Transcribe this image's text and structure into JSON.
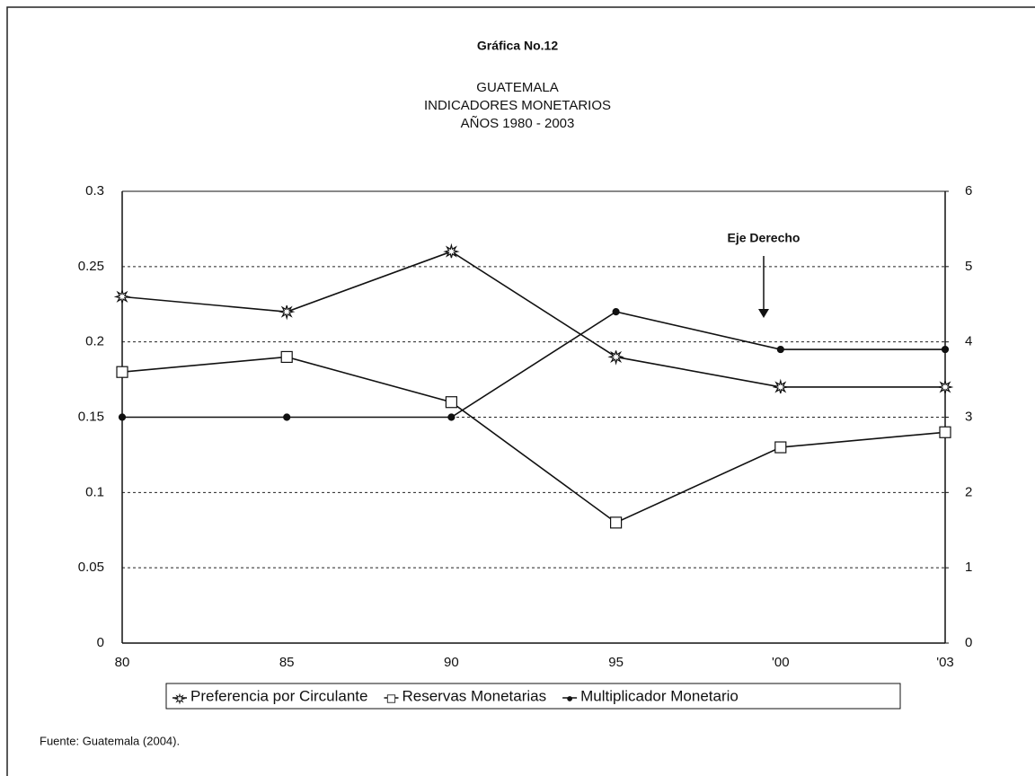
{
  "chart_data": {
    "type": "line",
    "label": "Gráfica No.12",
    "title": [
      "GUATEMALA",
      "INDICADORES MONETARIOS",
      "AÑOS 1980 - 2003"
    ],
    "categories": [
      "80",
      "85",
      "90",
      "95",
      "'00",
      "'03"
    ],
    "series": [
      {
        "name": "Preferencia por Circulante",
        "color": "#111111",
        "marker": "star",
        "values": [
          0.23,
          0.22,
          0.26,
          0.19,
          0.17,
          0.17
        ]
      },
      {
        "name": "Reservas Monetarias",
        "color": "#111111",
        "marker": "square",
        "values": [
          0.18,
          0.19,
          0.16,
          0.08,
          0.13,
          0.14
        ]
      },
      {
        "name": "Multiplicador Monetario",
        "color": "#111111",
        "marker": "dot",
        "axis": "y2",
        "values": [
          3.0,
          3.0,
          3.0,
          4.4,
          3.9,
          3.9
        ]
      }
    ],
    "ylim": [
      0,
      0.3
    ],
    "yticks": [
      0,
      0.05,
      0.1,
      0.15,
      0.2,
      0.25,
      0.3
    ],
    "y2lim": [
      0,
      6
    ],
    "y2ticks": [
      0,
      1,
      2,
      3,
      4,
      5,
      6
    ],
    "grid": true,
    "annotation": "Eje Derecho",
    "source": "Fuente: Guatemala (2004)."
  }
}
